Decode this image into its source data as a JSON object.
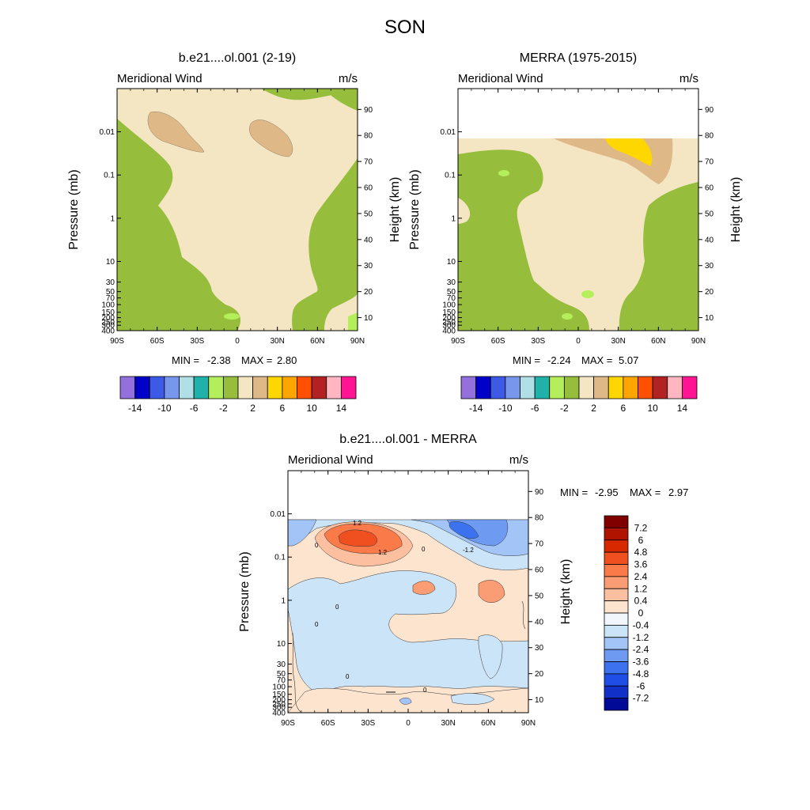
{
  "figure_title": "SON",
  "chart_data": [
    {
      "type": "filled-contour",
      "title": "b.e21....ol.001 (2-19)",
      "left_label": "Meridional Wind",
      "right_label": "m/s",
      "ylabel": "Pressure (mb)",
      "y2label": "Height (km)",
      "x_ticks": [
        "90S",
        "60S",
        "30S",
        "0",
        "30N",
        "60N",
        "90N"
      ],
      "p_ticks": [
        "0.01",
        "0.1",
        "1",
        "10",
        "30",
        "50",
        "70",
        "100",
        "150",
        "200",
        "250",
        "300",
        "400"
      ],
      "km_ticks": [
        "10",
        "20",
        "30",
        "40",
        "50",
        "60",
        "70",
        "80",
        "90"
      ],
      "min_label": "MIN =",
      "min_value": "-2.38",
      "max_label": "MAX =",
      "max_value": "2.80",
      "top_missing_km": null
    },
    {
      "type": "filled-contour",
      "title": "MERRA (1975-2015)",
      "left_label": "Meridional Wind",
      "right_label": "m/s",
      "ylabel": "Pressure (mb)",
      "y2label": "Height (km)",
      "x_ticks": [
        "90S",
        "60S",
        "30S",
        "0",
        "30N",
        "60N",
        "90N"
      ],
      "p_ticks": [
        "0.01",
        "0.1",
        "1",
        "10",
        "30",
        "50",
        "70",
        "100",
        "150",
        "200",
        "250",
        "300",
        "400"
      ],
      "km_ticks": [
        "10",
        "20",
        "30",
        "40",
        "50",
        "60",
        "70",
        "80",
        "90"
      ],
      "min_label": "MIN =",
      "min_value": "-2.24",
      "max_label": "MAX =",
      "max_value": "5.07",
      "top_missing_km": 76
    },
    {
      "type": "filled-contour",
      "title": "b.e21....ol.001 - MERRA",
      "left_label": "Meridional Wind",
      "right_label": "m/s",
      "ylabel": "Pressure (mb)",
      "y2label": "Height (km)",
      "x_ticks": [
        "90S",
        "60S",
        "30S",
        "0",
        "30N",
        "60N",
        "90N"
      ],
      "p_ticks": [
        "0.01",
        "0.1",
        "1",
        "10",
        "30",
        "50",
        "70",
        "100",
        "150",
        "200",
        "250",
        "300",
        "400"
      ],
      "km_ticks": [
        "10",
        "20",
        "30",
        "40",
        "50",
        "60",
        "70",
        "80",
        "90"
      ],
      "min_label": "MIN =",
      "min_value": "-2.95",
      "max_label": "MAX =",
      "max_value": "2.97",
      "top_missing_km": 76,
      "contour_labels": [
        "1.2",
        "1.2",
        "-1.2",
        "0",
        "0",
        "0",
        "0",
        "0",
        "0"
      ]
    }
  ],
  "colorbar_horizontal": {
    "labels": [
      "-14",
      "-10",
      "-6",
      "-2",
      "2",
      "6",
      "10",
      "14"
    ],
    "colors": [
      "#9370db",
      "#0000c8",
      "#3c5ae6",
      "#7896ec",
      "#b0e0e6",
      "#20b2aa",
      "#b4ee5a",
      "#96be3c",
      "#f5e6c3",
      "#deb887",
      "#ffd700",
      "#ffa500",
      "#ff5000",
      "#b22222",
      "#ffb6c1",
      "#ff1493"
    ]
  },
  "colorbar_vertical": {
    "labels": [
      "7.2",
      "6",
      "4.8",
      "3.6",
      "2.4",
      "1.2",
      "0.4",
      "0",
      "-0.4",
      "-1.2",
      "-2.4",
      "-3.6",
      "-4.8",
      "-6",
      "-7.2"
    ],
    "colors": [
      "#800000",
      "#b01400",
      "#d82800",
      "#f05020",
      "#fa7a4a",
      "#fa9c74",
      "#fcc0a0",
      "#fde4cf",
      "#f0f6fc",
      "#cce4f8",
      "#a2c4f6",
      "#6e9af2",
      "#3c72ee",
      "#1e4ee6",
      "#1030c8",
      "#000a96"
    ]
  }
}
